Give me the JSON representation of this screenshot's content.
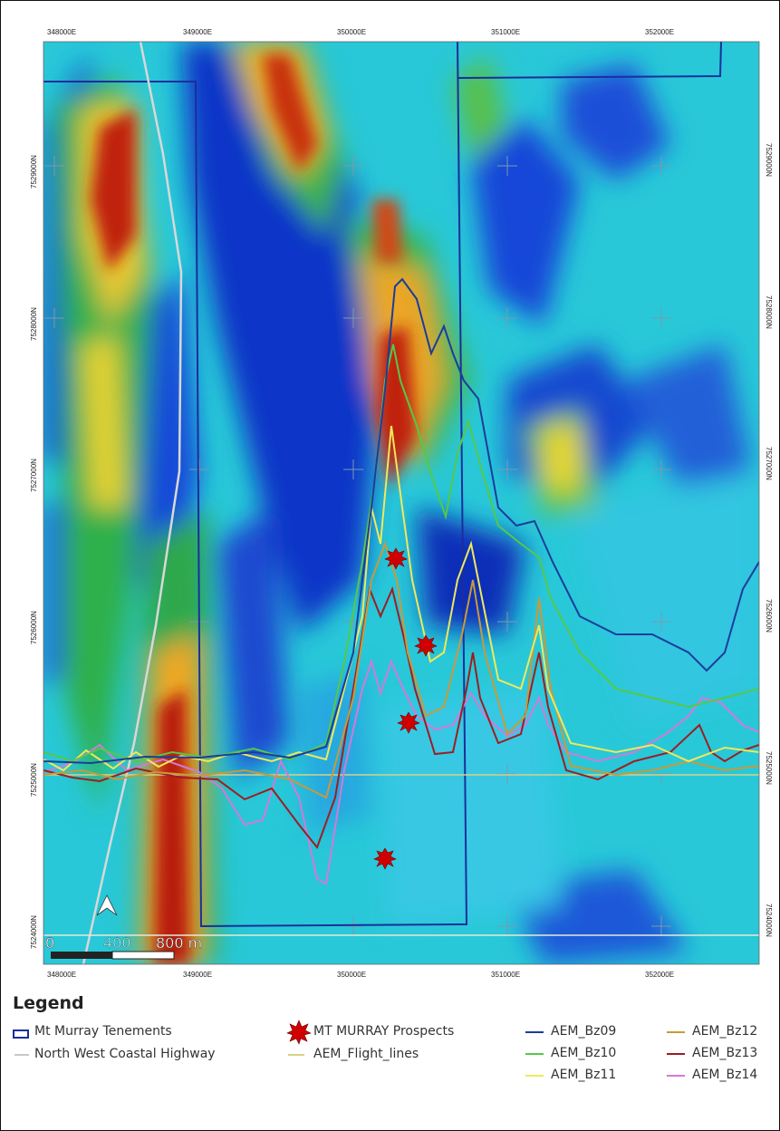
{
  "map": {
    "easting_labels": [
      "348000E",
      "349000E",
      "350000E",
      "351000E",
      "352000E"
    ],
    "northing_labels": [
      "7529000N",
      "7528000N",
      "7527000N",
      "7526000N",
      "7525000N",
      "7524000N"
    ],
    "scale_bar": {
      "start": "0",
      "mid": "400",
      "end": "800 m"
    },
    "prospects_count": 4
  },
  "legend": {
    "title": "Legend",
    "tenements": "Mt Murray Tenements",
    "highway": "North West Coastal Highway",
    "prospects": "MT MURRAY Prospects",
    "flight_lines": "AEM_Flight_lines",
    "bz09": "AEM_Bz09",
    "bz10": "AEM_Bz10",
    "bz11": "AEM_Bz11",
    "bz12": "AEM_Bz12",
    "bz13": "AEM_Bz13",
    "bz14": "AEM_Bz14"
  },
  "colors": {
    "tenements": "#1a2f9c",
    "highway": "#c8c8c8",
    "prospects": "#d00000",
    "flight_lines": "#d8d08a",
    "bz09": "#1c3c9c",
    "bz10": "#55c84a",
    "bz11": "#f0e85a",
    "bz12": "#c89a3a",
    "bz13": "#9c1e22",
    "bz14": "#d07ad8"
  }
}
